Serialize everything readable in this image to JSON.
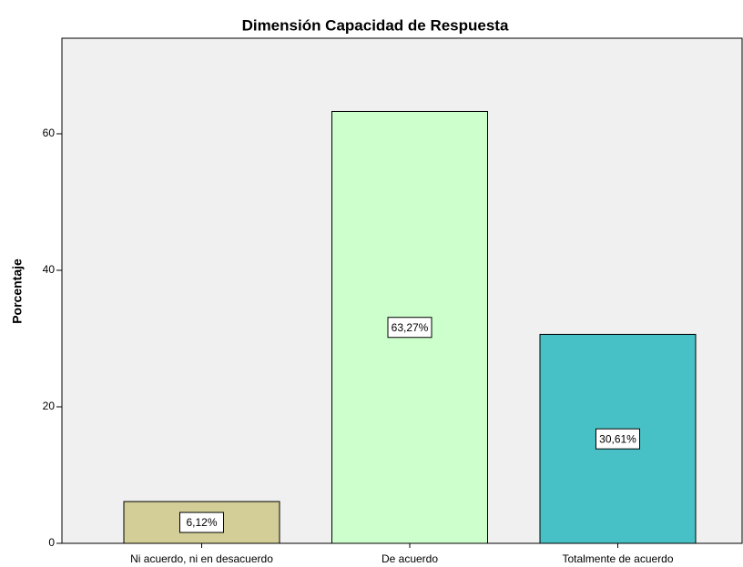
{
  "chart_data": {
    "type": "bar",
    "title": "Dimensión Capacidad de Respuesta",
    "ylabel": "Porcentaje",
    "categories": [
      "Ni acuerdo, ni en desacuerdo",
      "De acuerdo",
      "Totalmente de acuerdo"
    ],
    "values": [
      6.12,
      63.27,
      30.61
    ],
    "value_labels": [
      "6,12%",
      "63,27%",
      "30,61%"
    ],
    "colors": [
      "#d3ce97",
      "#ccffcc",
      "#48c1c6"
    ],
    "ylim": [
      0,
      74
    ],
    "yticks": [
      0,
      20,
      40,
      60
    ],
    "grid": false
  }
}
